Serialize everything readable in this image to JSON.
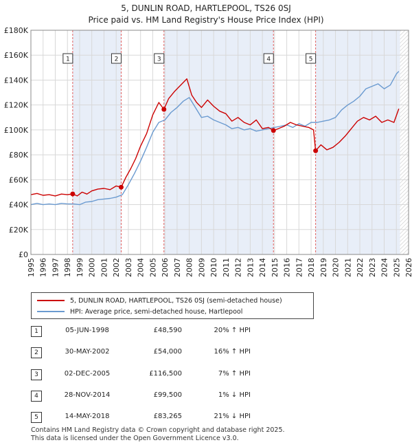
{
  "chart_data": {
    "type": "line",
    "title": "5, DUNLIN ROAD, HARTLEPOOL, TS26 0SJ",
    "subtitle": "Price paid vs. HM Land Registry's House Price Index (HPI)",
    "xlim": [
      1995,
      2026
    ],
    "ylim": [
      0,
      180000
    ],
    "x_ticks": [
      "1995",
      "1996",
      "1997",
      "1998",
      "1999",
      "2000",
      "2001",
      "2002",
      "2003",
      "2004",
      "2005",
      "2006",
      "2007",
      "2008",
      "2009",
      "2010",
      "2011",
      "2012",
      "2013",
      "2014",
      "2015",
      "2016",
      "2017",
      "2018",
      "2019",
      "2020",
      "2021",
      "2022",
      "2023",
      "2024",
      "2025",
      "2026"
    ],
    "y_ticks": [
      {
        "value": 0,
        "label": "£0"
      },
      {
        "value": 20000,
        "label": "£20K"
      },
      {
        "value": 40000,
        "label": "£40K"
      },
      {
        "value": 60000,
        "label": "£60K"
      },
      {
        "value": 80000,
        "label": "£80K"
      },
      {
        "value": 100000,
        "label": "£100K"
      },
      {
        "value": 120000,
        "label": "£120K"
      },
      {
        "value": 140000,
        "label": "£140K"
      },
      {
        "value": 160000,
        "label": "£160K"
      },
      {
        "value": 180000,
        "label": "£180K"
      }
    ],
    "grid": true,
    "colors": {
      "property": "#cc0000",
      "hpi": "#6a9ad0",
      "shade": "#e8eef8",
      "marker_line": "#e06060",
      "future_hatch": "#c8c8c8"
    },
    "shaded_periods": [
      [
        1998.43,
        2002.41
      ],
      [
        2005.92,
        2014.91
      ],
      [
        2018.37,
        2025.3
      ]
    ],
    "future_start": 2025.3,
    "series": [
      {
        "name": "5, DUNLIN ROAD, HARTLEPOOL, TS26 0SJ (semi-detached house)",
        "key": "property",
        "x": [
          1995.0,
          1995.5,
          1996.0,
          1996.5,
          1997.0,
          1997.5,
          1998.0,
          1998.43,
          1998.8,
          1999.2,
          1999.6,
          2000.0,
          2000.5,
          2001.0,
          2001.5,
          2002.0,
          2002.41,
          2002.8,
          2003.2,
          2003.6,
          2004.0,
          2004.5,
          2005.0,
          2005.5,
          2005.92,
          2006.3,
          2006.8,
          2007.3,
          2007.8,
          2008.2,
          2008.6,
          2009.0,
          2009.5,
          2010.0,
          2010.5,
          2011.0,
          2011.5,
          2012.0,
          2012.5,
          2013.0,
          2013.5,
          2014.0,
          2014.5,
          2014.91,
          2015.3,
          2015.8,
          2016.3,
          2016.8,
          2017.3,
          2017.8,
          2018.2,
          2018.37,
          2018.8,
          2019.3,
          2019.8,
          2020.3,
          2020.8,
          2021.3,
          2021.8,
          2022.3,
          2022.8,
          2023.3,
          2023.8,
          2024.3,
          2024.8,
          2025.2
        ],
        "y": [
          48000,
          49000,
          47500,
          48000,
          47000,
          48500,
          48000,
          48590,
          47000,
          50000,
          48500,
          51000,
          52500,
          53000,
          52000,
          55000,
          54000,
          62000,
          69000,
          77000,
          87000,
          97000,
          112000,
          122000,
          116500,
          125000,
          131000,
          136000,
          141000,
          128000,
          122000,
          118000,
          124000,
          119000,
          115000,
          113000,
          107000,
          110000,
          106000,
          104000,
          108000,
          101000,
          102000,
          99500,
          101000,
          103000,
          106000,
          104000,
          103000,
          102000,
          100000,
          83265,
          88000,
          84000,
          86000,
          90000,
          95000,
          101000,
          107000,
          110000,
          108000,
          111000,
          106000,
          108000,
          106000,
          117000
        ]
      },
      {
        "name": "HPI: Average price, semi-detached house, Hartlepool",
        "key": "hpi",
        "x": [
          1995.0,
          1995.5,
          1996.0,
          1996.5,
          1997.0,
          1997.5,
          1998.0,
          1998.5,
          1999.0,
          1999.5,
          2000.0,
          2000.5,
          2001.0,
          2001.5,
          2002.0,
          2002.5,
          2003.0,
          2003.5,
          2004.0,
          2004.5,
          2005.0,
          2005.5,
          2006.0,
          2006.5,
          2007.0,
          2007.5,
          2008.0,
          2008.5,
          2009.0,
          2009.5,
          2010.0,
          2010.5,
          2011.0,
          2011.5,
          2012.0,
          2012.5,
          2013.0,
          2013.5,
          2014.0,
          2014.5,
          2015.0,
          2015.5,
          2016.0,
          2016.5,
          2017.0,
          2017.5,
          2018.0,
          2018.5,
          2019.0,
          2019.5,
          2020.0,
          2020.5,
          2021.0,
          2021.5,
          2022.0,
          2022.5,
          2023.0,
          2023.5,
          2024.0,
          2024.5,
          2025.0,
          2025.2
        ],
        "y": [
          40000,
          41000,
          40000,
          40500,
          40000,
          41000,
          40500,
          40500,
          40000,
          42000,
          42500,
          44000,
          44500,
          45000,
          46000,
          48000,
          56000,
          65000,
          75000,
          86000,
          98000,
          106000,
          108000,
          114000,
          118000,
          123000,
          126000,
          118000,
          110000,
          111000,
          108000,
          106000,
          104000,
          101000,
          102000,
          100000,
          101000,
          99000,
          100000,
          101000,
          102000,
          103000,
          104000,
          102000,
          105000,
          103000,
          106000,
          106000,
          107000,
          108000,
          110000,
          116000,
          120000,
          123000,
          127000,
          133000,
          135000,
          137000,
          133000,
          136000,
          145000,
          147000
        ]
      }
    ],
    "sales": [
      {
        "n": "1",
        "x": 1998.43,
        "y": 48590
      },
      {
        "n": "2",
        "x": 2002.41,
        "y": 54000
      },
      {
        "n": "3",
        "x": 2005.92,
        "y": 116500
      },
      {
        "n": "4",
        "x": 2014.91,
        "y": 99500
      },
      {
        "n": "5",
        "x": 2018.37,
        "y": 83265
      }
    ]
  },
  "legend": {
    "property_label": "5, DUNLIN ROAD, HARTLEPOOL, TS26 0SJ (semi-detached house)",
    "hpi_label": "HPI: Average price, semi-detached house, Hartlepool"
  },
  "sales_table": [
    {
      "n": "1",
      "date": "05-JUN-1998",
      "price": "£48,590",
      "hpi": "20% ↑ HPI"
    },
    {
      "n": "2",
      "date": "30-MAY-2002",
      "price": "£54,000",
      "hpi": "16% ↑ HPI"
    },
    {
      "n": "3",
      "date": "02-DEC-2005",
      "price": "£116,500",
      "hpi": "7% ↑ HPI"
    },
    {
      "n": "4",
      "date": "28-NOV-2014",
      "price": "£99,500",
      "hpi": "1% ↓ HPI"
    },
    {
      "n": "5",
      "date": "14-MAY-2018",
      "price": "£83,265",
      "hpi": "21% ↓ HPI"
    }
  ],
  "footer": {
    "line1": "Contains HM Land Registry data © Crown copyright and database right 2025.",
    "line2": "This data is licensed under the Open Government Licence v3.0."
  }
}
